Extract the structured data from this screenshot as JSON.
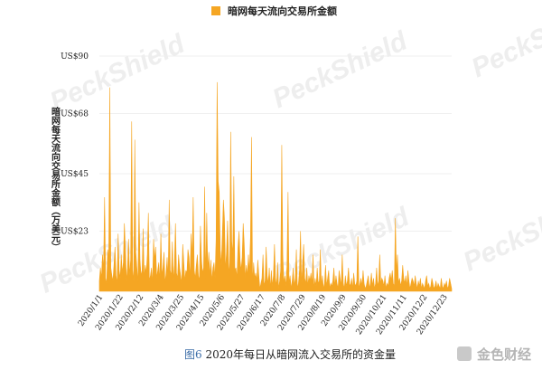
{
  "chart_data": {
    "type": "area",
    "title": "",
    "legend": [
      "暗网每天流向交易所金额"
    ],
    "ylabel": "暗网每天流向交易所金额（万美元）",
    "xlabel": "",
    "ylim": [
      0,
      90
    ],
    "yticks": [
      {
        "value": 23,
        "label": "US$23"
      },
      {
        "value": 45,
        "label": "US$45"
      },
      {
        "value": 68,
        "label": "US$68"
      },
      {
        "value": 90,
        "label": "US$90"
      }
    ],
    "x_tick_labels": [
      "2020/1/1",
      "2020/1/22",
      "2020/2/12",
      "2020/3/4",
      "2020/3/25",
      "2020/4/15",
      "2020/5/6",
      "2020/5/27",
      "2020/6/17",
      "2020/7/8",
      "2020/7/29",
      "2020/8/19",
      "2020/9/9",
      "2020/9/30",
      "2020/10/21",
      "2020/11/11",
      "2020/12/2",
      "2020/12/23"
    ],
    "x_start": "2020-01-01",
    "x_end": "2020-12-31",
    "series": [
      {
        "name": "暗网每天流向交易所金额",
        "color": "#f5a623",
        "values": [
          4,
          9,
          5,
          14,
          8,
          36,
          5,
          3,
          16,
          12,
          78,
          9,
          6,
          4,
          10,
          17,
          6,
          3,
          22,
          8,
          5,
          14,
          7,
          11,
          26,
          16,
          4,
          9,
          20,
          6,
          12,
          65,
          8,
          4,
          58,
          15,
          9,
          3,
          34,
          12,
          6,
          8,
          24,
          5,
          10,
          7,
          14,
          30,
          4,
          6,
          9,
          3,
          20,
          12,
          17,
          5,
          8,
          11,
          4,
          22,
          6,
          9,
          15,
          3,
          7,
          13,
          5,
          35,
          8,
          6,
          19,
          4,
          10,
          26,
          7,
          5,
          14,
          9,
          6,
          3,
          18,
          11,
          4,
          8,
          7,
          16,
          13,
          5,
          22,
          12,
          36,
          8,
          5,
          10,
          14,
          6,
          4,
          25,
          12,
          7,
          9,
          40,
          5,
          30,
          8,
          15,
          6,
          12,
          4,
          9,
          11,
          5,
          20,
          80,
          42,
          38,
          16,
          10,
          22,
          35,
          28,
          8,
          15,
          27,
          11,
          6,
          61,
          19,
          14,
          44,
          8,
          9,
          5,
          17,
          23,
          12,
          8,
          13,
          26,
          18,
          5,
          10,
          6,
          14,
          7,
          21,
          59,
          3,
          11,
          5,
          7,
          4,
          12,
          6,
          1,
          3,
          5,
          14,
          2,
          4,
          17,
          6,
          3,
          9,
          1,
          8,
          2,
          6,
          18,
          5,
          2,
          11,
          1,
          4,
          8,
          56,
          14,
          3,
          6,
          2,
          10,
          38,
          3,
          6,
          1,
          4,
          9,
          2,
          5,
          16,
          1,
          3,
          8,
          23,
          2,
          11,
          18,
          5,
          3,
          9,
          2,
          6,
          4,
          7,
          3,
          14,
          1,
          5,
          2,
          9,
          3,
          4,
          16,
          2,
          6,
          1,
          3,
          10,
          2,
          5,
          8,
          1,
          3,
          2,
          4,
          9,
          2,
          6,
          3,
          1,
          8,
          5,
          2,
          14,
          3,
          1,
          6,
          2,
          4,
          9,
          3,
          2,
          5,
          1,
          7,
          3,
          2,
          4,
          21,
          1,
          3,
          5,
          2,
          8,
          3,
          1,
          2,
          4,
          6,
          1,
          3,
          7,
          2,
          5,
          1,
          3,
          9,
          2,
          4,
          14,
          3,
          5,
          4,
          2,
          6,
          1,
          3,
          2,
          5,
          7,
          4,
          8,
          3,
          2,
          28,
          7,
          14,
          3,
          5,
          2,
          4,
          10,
          5,
          3,
          6,
          2,
          8,
          4,
          1,
          3,
          5,
          4,
          2,
          6,
          3,
          1,
          4,
          2,
          5,
          1,
          3,
          2,
          1,
          4,
          6,
          2,
          3,
          1,
          2,
          5,
          3,
          1,
          2,
          4,
          1,
          3,
          2,
          1,
          5,
          2,
          1,
          3,
          2,
          4,
          1,
          2,
          5,
          3,
          1
        ]
      }
    ]
  },
  "caption": {
    "fig": "图6",
    "text": " 2020年每日从暗网流入交易所的资金量"
  },
  "watermarks": {
    "brand": "PeckShield",
    "logo": "金色财经"
  }
}
